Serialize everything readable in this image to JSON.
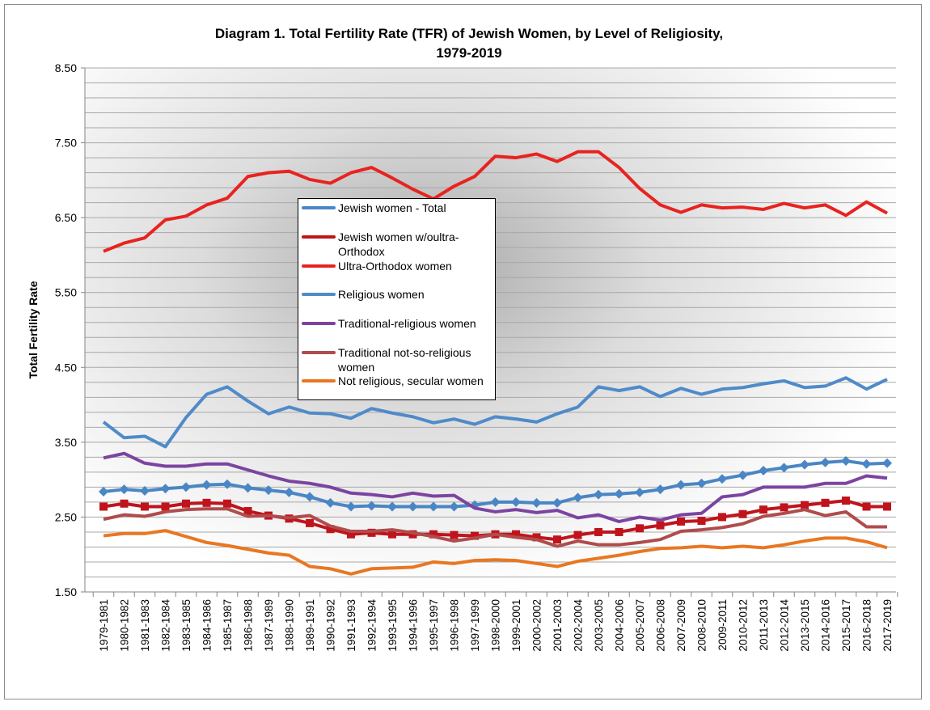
{
  "chart_data": {
    "type": "line",
    "title": "Diagram 1. Total Fertility Rate (TFR) of Jewish Women, by Level of Religiosity,",
    "title_line2": "1979-2019",
    "ylabel": "Total Fertility Rate",
    "xlabel": "",
    "ylim": [
      1.5,
      8.5
    ],
    "yticks": [
      "1.50",
      "2.50",
      "3.50",
      "4.50",
      "5.50",
      "6.50",
      "7.50",
      "8.50"
    ],
    "grid_step": 0.2,
    "grid": true,
    "legend_placement": "center-left",
    "categories": [
      "1979-1981",
      "1980-1982",
      "1981-1983",
      "1982-1984",
      "1983-1985",
      "1984-1986",
      "1985-1987",
      "1986-1988",
      "1987-1989",
      "1988-1990",
      "1989-1991",
      "1990-1992",
      "1991-1993",
      "1992-1994",
      "1993-1995",
      "1994-1996",
      "1995-1997",
      "1996-1998",
      "1997-1999",
      "1998-2000",
      "1999-2001",
      "2000-2002",
      "2001-2003",
      "2002-2004",
      "2003-2005",
      "2004-2006",
      "2005-2007",
      "2006-2008",
      "2007-2009",
      "2008-2010",
      "2009-2011",
      "2010-2012",
      "2011-2013",
      "2012-2014",
      "2013-2015",
      "2014-2016",
      "2015-2017",
      "2016-2018",
      "2017-2019"
    ],
    "series": [
      {
        "name": "Jewish women - Total",
        "color": "#4a86c5",
        "marker": "diamond",
        "values": [
          2.84,
          2.87,
          2.85,
          2.88,
          2.9,
          2.93,
          2.94,
          2.89,
          2.86,
          2.83,
          2.77,
          2.69,
          2.64,
          2.65,
          2.64,
          2.64,
          2.64,
          2.64,
          2.66,
          2.7,
          2.7,
          2.69,
          2.69,
          2.76,
          2.8,
          2.81,
          2.83,
          2.87,
          2.93,
          2.95,
          3.01,
          3.06,
          3.12,
          3.16,
          3.2,
          3.23,
          3.25,
          3.21,
          3.22
        ]
      },
      {
        "name": "Jewish women w/oultra-Orthodox",
        "color": "#c0141c",
        "marker": "square",
        "values": [
          2.64,
          2.68,
          2.64,
          2.64,
          2.68,
          2.69,
          2.68,
          2.58,
          2.52,
          2.48,
          2.42,
          2.34,
          2.27,
          2.29,
          2.27,
          2.27,
          2.27,
          2.26,
          2.25,
          2.27,
          2.27,
          2.23,
          2.2,
          2.26,
          2.3,
          2.3,
          2.35,
          2.39,
          2.44,
          2.45,
          2.5,
          2.54,
          2.6,
          2.63,
          2.66,
          2.69,
          2.72,
          2.64,
          2.64
        ]
      },
      {
        "name": "Ultra-Orthodox women",
        "color": "#e8231f",
        "marker": "none",
        "values": [
          6.05,
          6.16,
          6.23,
          6.47,
          6.52,
          6.67,
          6.76,
          7.05,
          7.1,
          7.12,
          7.01,
          6.96,
          7.1,
          7.17,
          7.03,
          6.88,
          6.75,
          6.92,
          7.05,
          7.32,
          7.3,
          7.35,
          7.25,
          7.38,
          7.38,
          7.17,
          6.89,
          6.67,
          6.57,
          6.67,
          6.63,
          6.64,
          6.61,
          6.69,
          6.63,
          6.67,
          6.53,
          6.71,
          6.56
        ]
      },
      {
        "name": "Religious women",
        "color": "#4f8bc9",
        "marker": "none",
        "values": [
          3.77,
          3.56,
          3.58,
          3.44,
          3.83,
          4.14,
          4.24,
          4.05,
          3.88,
          3.97,
          3.89,
          3.88,
          3.82,
          3.95,
          3.89,
          3.84,
          3.76,
          3.81,
          3.74,
          3.84,
          3.81,
          3.77,
          3.88,
          3.97,
          4.24,
          4.19,
          4.24,
          4.11,
          4.22,
          4.14,
          4.21,
          4.23,
          4.28,
          4.32,
          4.23,
          4.25,
          4.36,
          4.21,
          4.34
        ]
      },
      {
        "name": "Traditional-religious women",
        "color": "#7c44a0",
        "marker": "none",
        "values": [
          3.29,
          3.35,
          3.22,
          3.18,
          3.18,
          3.21,
          3.21,
          3.13,
          3.05,
          2.98,
          2.95,
          2.9,
          2.82,
          2.8,
          2.77,
          2.82,
          2.78,
          2.79,
          2.62,
          2.57,
          2.6,
          2.56,
          2.59,
          2.49,
          2.53,
          2.44,
          2.5,
          2.46,
          2.53,
          2.55,
          2.77,
          2.8,
          2.9,
          2.9,
          2.9,
          2.95,
          2.95,
          3.05,
          3.02
        ]
      },
      {
        "name": "Traditional not-so-religious women",
        "color": "#b04c4c",
        "marker": "none",
        "values": [
          2.47,
          2.53,
          2.51,
          2.57,
          2.6,
          2.61,
          2.61,
          2.51,
          2.52,
          2.49,
          2.52,
          2.38,
          2.31,
          2.31,
          2.33,
          2.29,
          2.24,
          2.18,
          2.22,
          2.27,
          2.23,
          2.2,
          2.11,
          2.18,
          2.13,
          2.13,
          2.16,
          2.2,
          2.31,
          2.33,
          2.36,
          2.41,
          2.51,
          2.55,
          2.6,
          2.52,
          2.57,
          2.37,
          2.37
        ]
      },
      {
        "name": "Not religious, secular women",
        "color": "#e87722",
        "marker": "none",
        "values": [
          2.25,
          2.28,
          2.28,
          2.32,
          2.24,
          2.16,
          2.12,
          2.07,
          2.02,
          1.99,
          1.84,
          1.81,
          1.74,
          1.81,
          1.82,
          1.83,
          1.9,
          1.88,
          1.92,
          1.93,
          1.92,
          1.88,
          1.84,
          1.91,
          1.95,
          1.99,
          2.04,
          2.08,
          2.09,
          2.11,
          2.09,
          2.11,
          2.09,
          2.13,
          2.18,
          2.22,
          2.22,
          2.17,
          2.09
        ]
      }
    ],
    "legend_labels": [
      "Jewish women - Total",
      "Jewish women w/oultra-Orthodox",
      "Ultra-Orthodox women",
      "Religious women",
      "Traditional-religious women",
      "Traditional not-so-religious women",
      "Not religious, secular women"
    ]
  }
}
